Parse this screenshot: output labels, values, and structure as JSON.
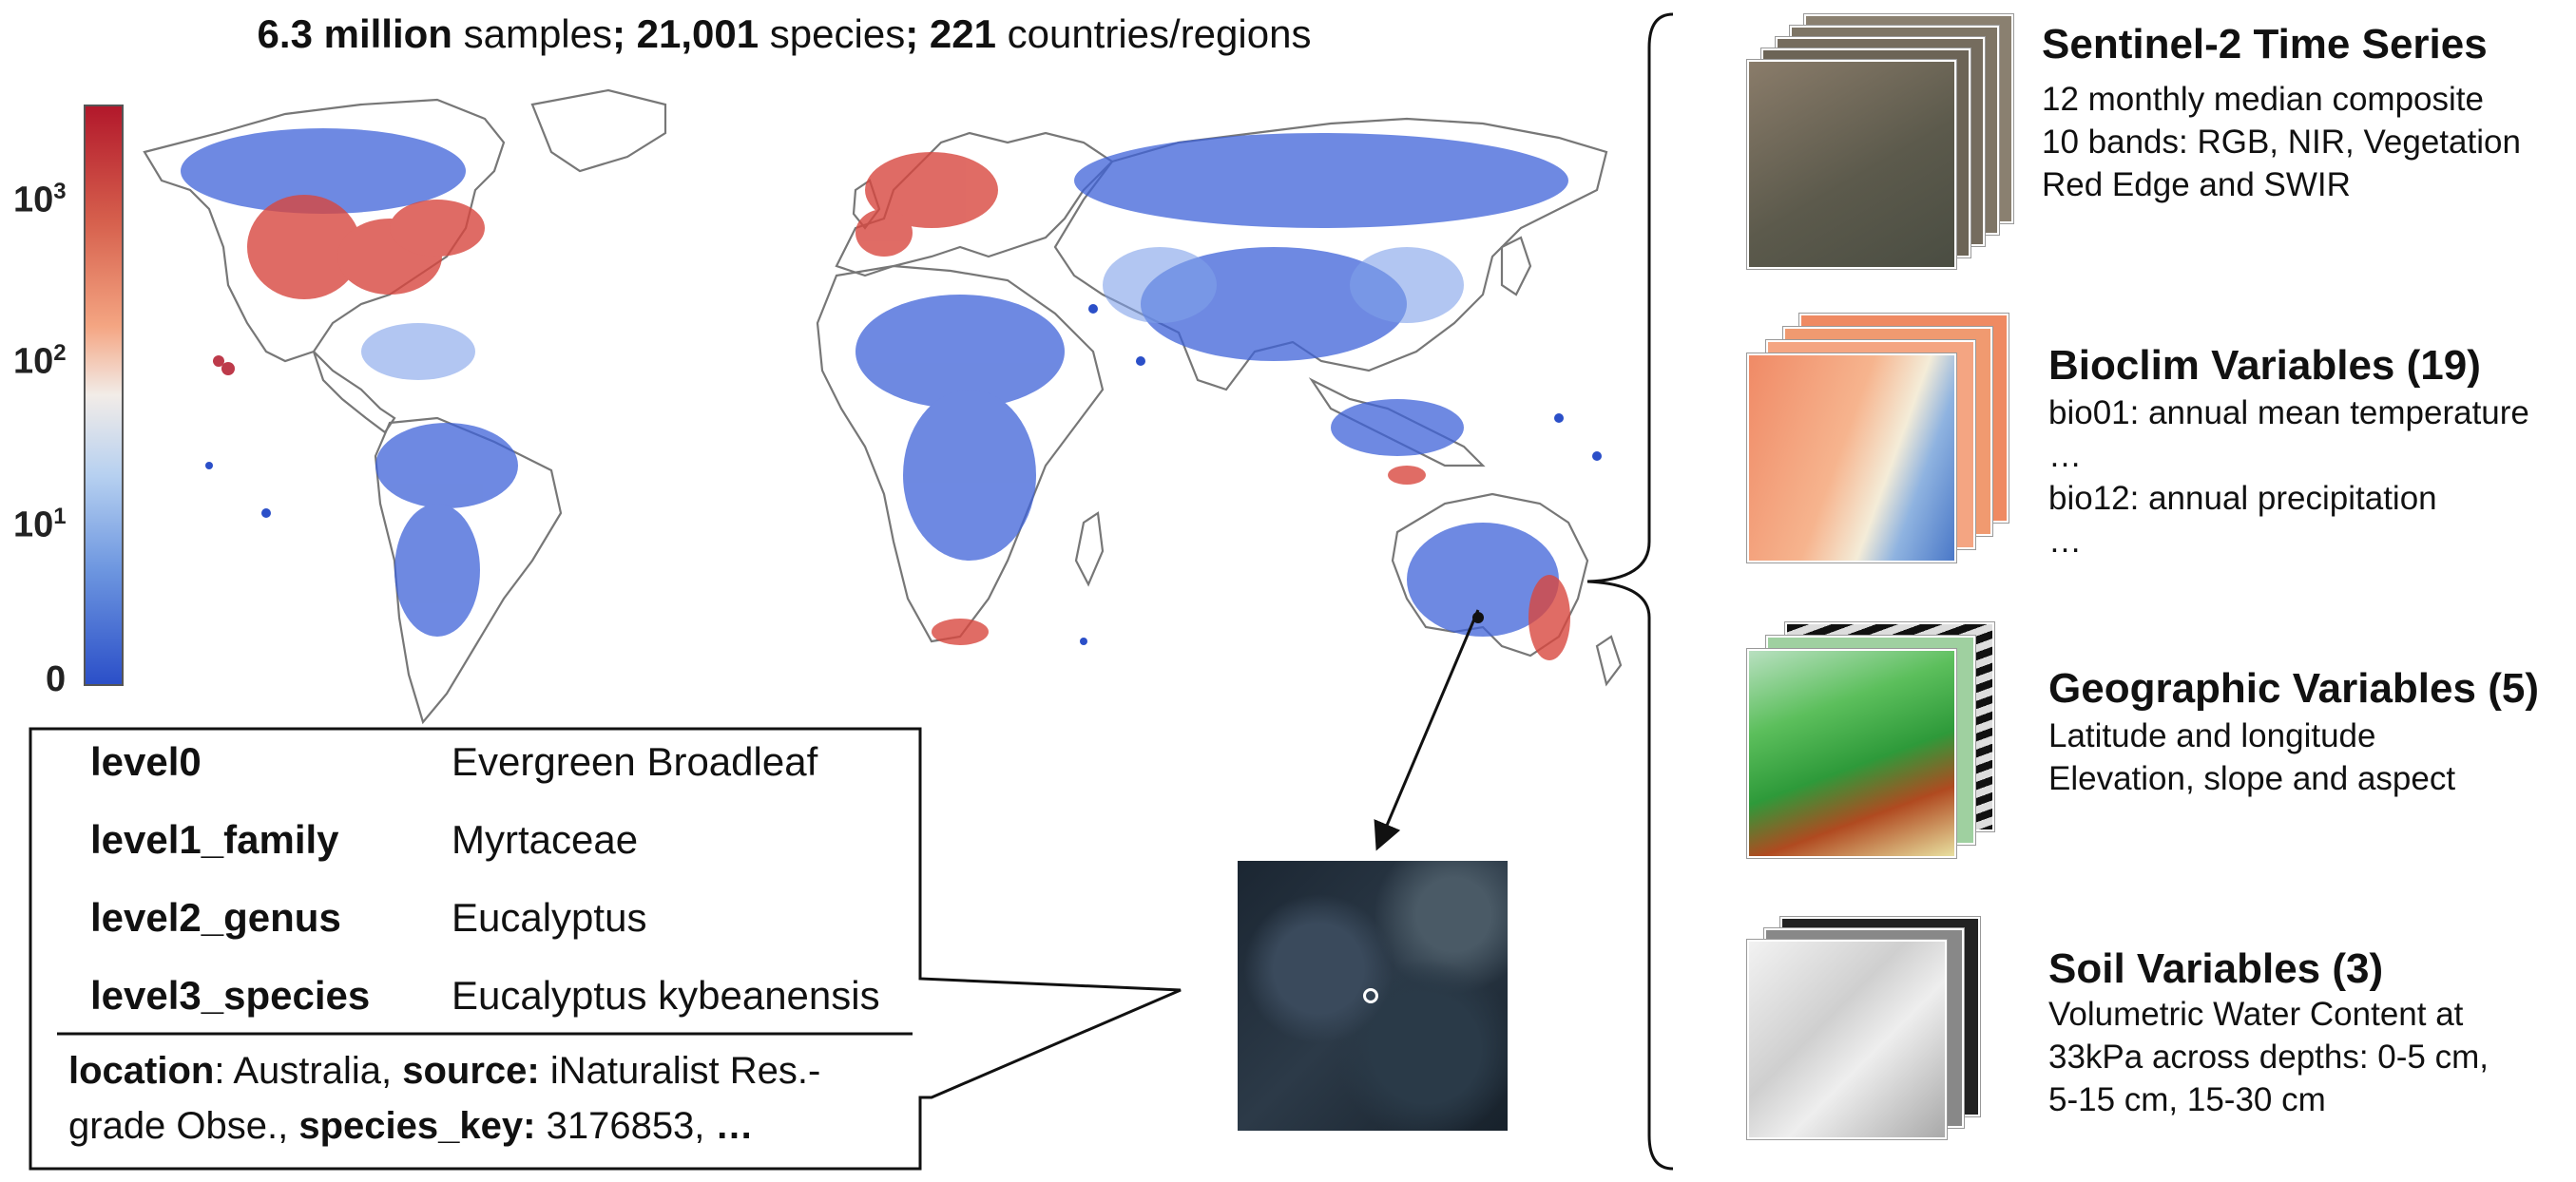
{
  "header": {
    "n_samples": "6.3 million",
    "samples_label": " samples",
    "sep1": "; ",
    "n_species": "21,001",
    "species_label": " species",
    "sep2": "; ",
    "n_regions": "221",
    "regions_label": " countries/regions"
  },
  "colorbar": {
    "ticks": [
      {
        "base": "10",
        "exp": "3"
      },
      {
        "base": "10",
        "exp": "2"
      },
      {
        "base": "10",
        "exp": "1"
      },
      {
        "base": "0",
        "exp": ""
      }
    ],
    "colors": [
      "#b2182b",
      "#ef8a62",
      "#f7f7f7",
      "#67a9cf",
      "#2b4fc8"
    ]
  },
  "sample_info": {
    "rows": [
      {
        "key": "level0",
        "value": "Evergreen Broadleaf"
      },
      {
        "key": "level1_family",
        "value": "Myrtaceae"
      },
      {
        "key": "level2_genus",
        "value": "Eucalyptus"
      },
      {
        "key": "level3_species",
        "value": "Eucalyptus kybeanensis"
      }
    ],
    "footer": {
      "location_key": "location",
      "location_val": ": Australia, ",
      "source_key": "source:",
      "source_val": " iNaturalist Res.-",
      "line2_val": "grade Obse., ",
      "species_key_key": "species_key:",
      "species_key_val": " 3176853, ",
      "ellipsis": "…"
    }
  },
  "cards": [
    {
      "title": "Sentinel-2 Time Series",
      "lines": [
        "12 monthly median composite",
        "10 bands: RGB, NIR, Vegetation",
        "Red Edge and SWIR"
      ]
    },
    {
      "title": "Bioclim Variables (19)",
      "lines": [
        "bio01: annual mean temperature",
        "…",
        "bio12: annual precipitation",
        "…"
      ]
    },
    {
      "title": "Geographic Variables (5)",
      "lines": [
        "Latitude and longitude",
        "Elevation, slope and aspect"
      ]
    },
    {
      "title": "Soil Variables (3)",
      "lines": [
        "Volumetric Water Content at",
        "33kPa across depths: 0-5 cm,",
        "5-15 cm, 15-30 cm"
      ]
    }
  ]
}
